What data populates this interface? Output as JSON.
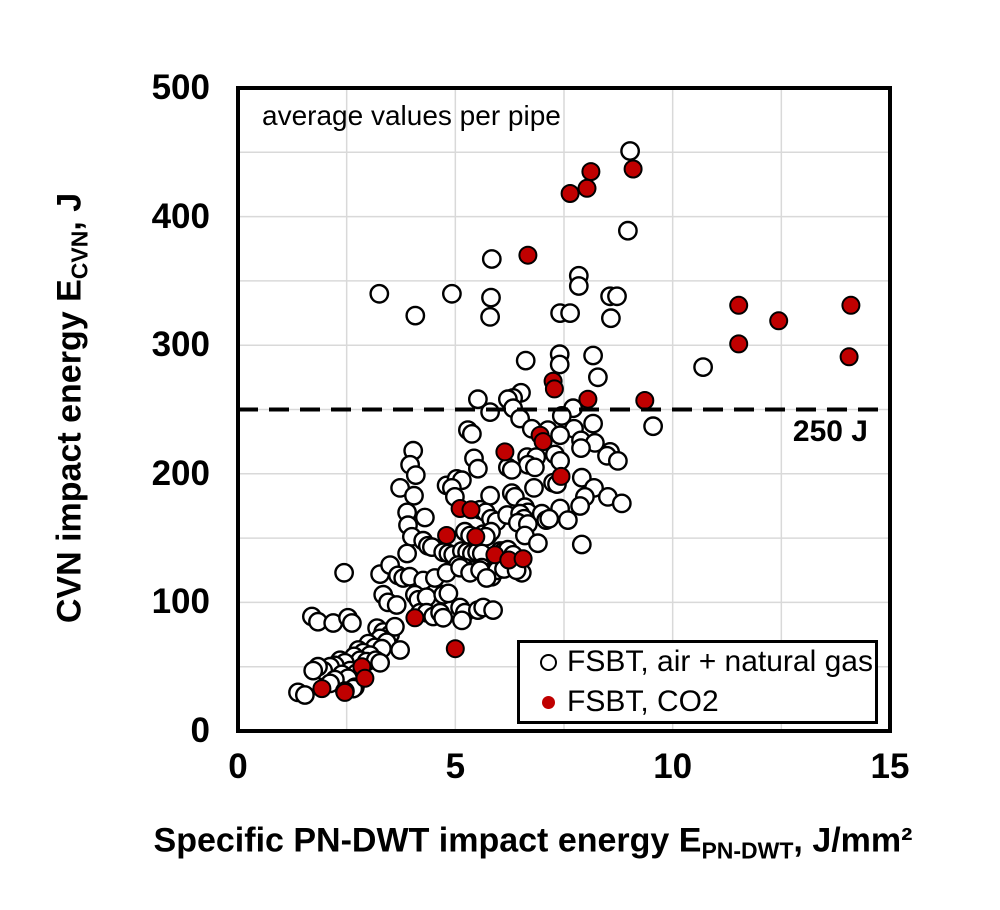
{
  "chart": {
    "annotation": "average values per pipe",
    "y_axis": {
      "title_main": "CVN impact energy E",
      "title_sub": "CVN",
      "title_tail": ", J",
      "ticks": [
        "0",
        "100",
        "200",
        "300",
        "400",
        "500"
      ]
    },
    "x_axis": {
      "title_main": "Specific PN-DWT impact energy E",
      "title_sub": "PN-DWT",
      "title_tail": ", J/mm²",
      "ticks": [
        "0",
        "5",
        "10",
        "15"
      ]
    },
    "ref_line": {
      "value": 250,
      "label": "250 J"
    },
    "legend": [
      {
        "label": "FSBT, air + natural gas",
        "marker": "open-circle"
      },
      {
        "label": "FSBT, CO2",
        "marker": "red-dot"
      }
    ],
    "colors": {
      "red": "#c00000",
      "black": "#000000",
      "grid": "#d9d9d9",
      "background": "#ffffff"
    }
  },
  "chart_data": {
    "type": "scatter",
    "title": "",
    "annotation": "average values per pipe",
    "xlabel": "Specific PN-DWT impact energy E_PN-DWT, J/mm²",
    "ylabel": "CVN impact energy E_CVN, J",
    "xlim": [
      0,
      15
    ],
    "ylim": [
      0,
      500
    ],
    "x_tick_values": [
      0,
      5,
      10,
      15
    ],
    "y_tick_values": [
      0,
      100,
      200,
      300,
      400,
      500
    ],
    "x_grid_step": 2.5,
    "y_grid_step": 50,
    "grid": true,
    "legend_position": "lower right",
    "ref_line_y": 250,
    "series": [
      {
        "name": "FSBT, air + natural gas",
        "marker": "open-circle",
        "fill": "#ffffff",
        "edge": "#000000",
        "points": [
          [
            9.02,
            451
          ],
          [
            8.97,
            389
          ],
          [
            5.84,
            367
          ],
          [
            7.84,
            354
          ],
          [
            7.84,
            346
          ],
          [
            3.25,
            340
          ],
          [
            4.92,
            340
          ],
          [
            8.56,
            338
          ],
          [
            8.72,
            338
          ],
          [
            5.82,
            337
          ],
          [
            7.41,
            325
          ],
          [
            7.64,
            325
          ],
          [
            4.08,
            323
          ],
          [
            5.8,
            322
          ],
          [
            8.58,
            321
          ],
          [
            7.4,
            293
          ],
          [
            7.4,
            285
          ],
          [
            8.17,
            292
          ],
          [
            8.28,
            275
          ],
          [
            6.62,
            288
          ],
          [
            10.7,
            283
          ],
          [
            6.51,
            263
          ],
          [
            6.33,
            259
          ],
          [
            5.52,
            258
          ],
          [
            6.21,
            258
          ],
          [
            6.33,
            251
          ],
          [
            5.8,
            248
          ],
          [
            7.71,
            251
          ],
          [
            7.45,
            245
          ],
          [
            6.49,
            243
          ],
          [
            8.17,
            239
          ],
          [
            9.55,
            237
          ],
          [
            6.76,
            235
          ],
          [
            7.13,
            234
          ],
          [
            7.73,
            235
          ],
          [
            7.41,
            230
          ],
          [
            7.89,
            226
          ],
          [
            8.21,
            224
          ],
          [
            7.89,
            220
          ],
          [
            8.56,
            217
          ],
          [
            5.29,
            234
          ],
          [
            5.38,
            231
          ],
          [
            4.03,
            218
          ],
          [
            5.43,
            212
          ],
          [
            8.49,
            214
          ],
          [
            8.74,
            210
          ],
          [
            7.29,
            215
          ],
          [
            7.41,
            210
          ],
          [
            6.65,
            213
          ],
          [
            6.86,
            213
          ],
          [
            6.67,
            207
          ],
          [
            6.83,
            205
          ],
          [
            3.96,
            207
          ],
          [
            4.09,
            199
          ],
          [
            5.52,
            204
          ],
          [
            6.21,
            205
          ],
          [
            6.3,
            203
          ],
          [
            7.25,
            193
          ],
          [
            7.34,
            192
          ],
          [
            7.91,
            197
          ],
          [
            8.19,
            189
          ],
          [
            6.81,
            189
          ],
          [
            7.98,
            182
          ],
          [
            7.87,
            175
          ],
          [
            8.51,
            182
          ],
          [
            8.83,
            177
          ],
          [
            3.73,
            189
          ],
          [
            4.8,
            191
          ],
          [
            5.03,
            196
          ],
          [
            5.15,
            195
          ],
          [
            4.92,
            189
          ],
          [
            4.99,
            182
          ],
          [
            4.05,
            183
          ],
          [
            5.8,
            183
          ],
          [
            6.3,
            185
          ],
          [
            6.37,
            182
          ],
          [
            5.57,
            172
          ],
          [
            5.7,
            170
          ],
          [
            3.89,
            170
          ],
          [
            4.3,
            166
          ],
          [
            3.91,
            160
          ],
          [
            5.82,
            165
          ],
          [
            5.95,
            163
          ],
          [
            6.19,
            168
          ],
          [
            7.41,
            173
          ],
          [
            6.6,
            174
          ],
          [
            6.67,
            170
          ],
          [
            6.49,
            169
          ],
          [
            6.58,
            165
          ],
          [
            6.44,
            162
          ],
          [
            6.67,
            161
          ],
          [
            6.99,
            169
          ],
          [
            7.09,
            164
          ],
          [
            7.16,
            165
          ],
          [
            7.59,
            164
          ],
          [
            6.6,
            152
          ],
          [
            6.9,
            146
          ],
          [
            7.91,
            145
          ],
          [
            5.22,
            155
          ],
          [
            5.34,
            152
          ],
          [
            5.64,
            153
          ],
          [
            5.75,
            152
          ],
          [
            5.82,
            155
          ],
          [
            5.7,
            151
          ],
          [
            4.0,
            151
          ],
          [
            4.26,
            148
          ],
          [
            4.37,
            144
          ],
          [
            4.46,
            143
          ],
          [
            3.89,
            138
          ],
          [
            4.72,
            139
          ],
          [
            4.84,
            138
          ],
          [
            4.95,
            137
          ],
          [
            5.15,
            140
          ],
          [
            5.27,
            139
          ],
          [
            5.38,
            138
          ],
          [
            5.5,
            139
          ],
          [
            5.61,
            138
          ],
          [
            6.03,
            140
          ],
          [
            6.12,
            140
          ],
          [
            6.21,
            141
          ],
          [
            6.33,
            137
          ],
          [
            6.53,
            123
          ],
          [
            5.06,
            129
          ],
          [
            5.22,
            127
          ],
          [
            5.41,
            125
          ],
          [
            5.61,
            127
          ],
          [
            5.75,
            123
          ],
          [
            5.84,
            120
          ],
          [
            5.96,
            125
          ],
          [
            6.12,
            126
          ],
          [
            6.41,
            125
          ],
          [
            2.44,
            123
          ],
          [
            3.27,
            122
          ],
          [
            3.5,
            129
          ],
          [
            3.68,
            121
          ],
          [
            3.8,
            119
          ],
          [
            3.95,
            120
          ],
          [
            4.26,
            117
          ],
          [
            4.53,
            119
          ],
          [
            4.8,
            123
          ],
          [
            5.11,
            127
          ],
          [
            5.34,
            123
          ],
          [
            5.57,
            125
          ],
          [
            5.72,
            119
          ],
          [
            3.34,
            106
          ],
          [
            3.45,
            100
          ],
          [
            3.65,
            98
          ],
          [
            4.07,
            106
          ],
          [
            4.15,
            102
          ],
          [
            4.34,
            104
          ],
          [
            4.72,
            106
          ],
          [
            4.84,
            107
          ],
          [
            4.19,
            92
          ],
          [
            4.34,
            92
          ],
          [
            4.49,
            89
          ],
          [
            4.65,
            92
          ],
          [
            4.72,
            88
          ],
          [
            5.11,
            96
          ],
          [
            5.22,
            92
          ],
          [
            5.52,
            94
          ],
          [
            5.64,
            96
          ],
          [
            5.87,
            94
          ],
          [
            5.15,
            86
          ],
          [
            1.7,
            89
          ],
          [
            1.84,
            85
          ],
          [
            2.19,
            84
          ],
          [
            2.53,
            88
          ],
          [
            2.62,
            84
          ],
          [
            3.2,
            80
          ],
          [
            3.34,
            77
          ],
          [
            3.5,
            75
          ],
          [
            3.61,
            81
          ],
          [
            3.27,
            72
          ],
          [
            3.42,
            69
          ],
          [
            3.0,
            68
          ],
          [
            3.15,
            65
          ],
          [
            3.31,
            64
          ],
          [
            3.73,
            63
          ],
          [
            2.77,
            63
          ],
          [
            2.88,
            61
          ],
          [
            3.04,
            59
          ],
          [
            2.67,
            58
          ],
          [
            2.81,
            55
          ],
          [
            2.96,
            54
          ],
          [
            3.17,
            55
          ],
          [
            3.27,
            53
          ],
          [
            2.35,
            55
          ],
          [
            2.46,
            53
          ],
          [
            2.23,
            51
          ],
          [
            2.12,
            50
          ],
          [
            1.96,
            47
          ],
          [
            1.84,
            50
          ],
          [
            1.73,
            47
          ],
          [
            2.58,
            47
          ],
          [
            2.73,
            45
          ],
          [
            2.39,
            44
          ],
          [
            2.53,
            41
          ],
          [
            2.23,
            40
          ],
          [
            2.12,
            37
          ],
          [
            2.69,
            34
          ],
          [
            2.65,
            33
          ],
          [
            2.46,
            31
          ],
          [
            1.38,
            30
          ],
          [
            1.54,
            28
          ]
        ]
      },
      {
        "name": "FSBT, CO2",
        "marker": "filled-circle",
        "fill": "#c00000",
        "edge": "#000000",
        "points": [
          [
            9.09,
            437
          ],
          [
            8.12,
            435
          ],
          [
            8.03,
            422
          ],
          [
            7.64,
            418
          ],
          [
            6.67,
            370
          ],
          [
            11.52,
            331
          ],
          [
            14.1,
            331
          ],
          [
            12.44,
            319
          ],
          [
            11.52,
            301
          ],
          [
            14.06,
            291
          ],
          [
            7.25,
            272
          ],
          [
            7.28,
            266
          ],
          [
            8.05,
            258
          ],
          [
            9.36,
            257
          ],
          [
            6.95,
            230
          ],
          [
            7.02,
            225
          ],
          [
            6.14,
            217
          ],
          [
            7.43,
            198
          ],
          [
            5.11,
            173
          ],
          [
            5.36,
            172
          ],
          [
            4.8,
            152
          ],
          [
            5.47,
            151
          ],
          [
            5.91,
            137
          ],
          [
            6.23,
            133
          ],
          [
            6.56,
            134
          ],
          [
            4.07,
            88
          ],
          [
            5.0,
            64
          ],
          [
            2.85,
            50
          ],
          [
            2.92,
            41
          ],
          [
            1.93,
            33
          ],
          [
            2.46,
            30
          ]
        ]
      }
    ]
  }
}
